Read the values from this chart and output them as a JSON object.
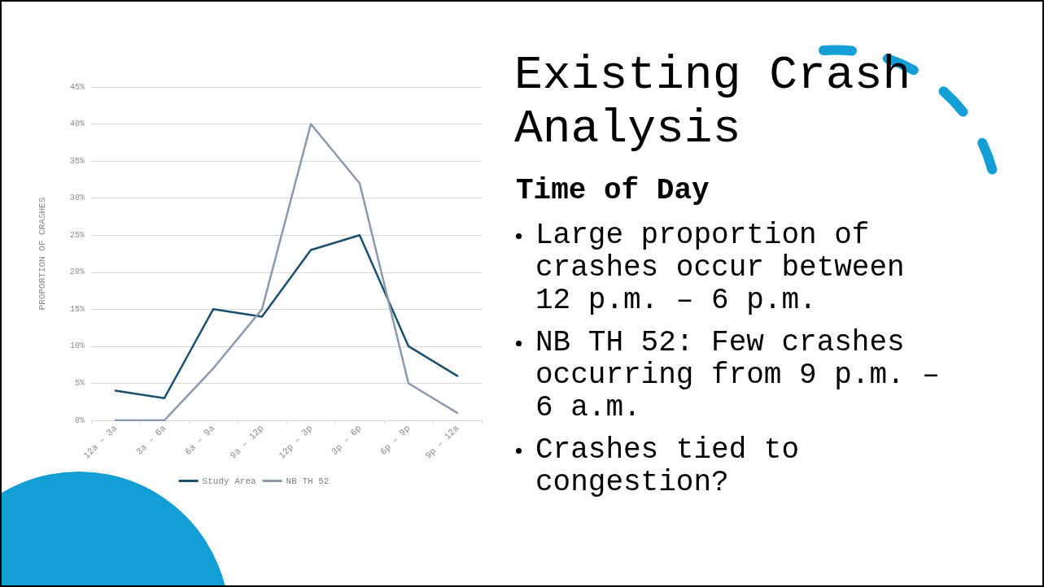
{
  "chart_data": {
    "type": "line",
    "title": "Existing Crash Analysis",
    "subtitle": "Time of Day",
    "ylabel": "PROPORTION OF CRASHES",
    "categories": [
      "12a – 3a",
      "3a – 6a",
      "6a – 9a",
      "9a – 12p",
      "12p – 3p",
      "3p – 6p",
      "6p – 9p",
      "9p – 12a"
    ],
    "series": [
      {
        "name": "Study Area",
        "color": "#1b4f6e",
        "values": [
          4,
          3,
          15,
          14,
          23,
          25,
          10,
          6
        ]
      },
      {
        "name": "NB TH 52",
        "color": "#8a9aac",
        "values": [
          0,
          0,
          7,
          15,
          40,
          32,
          5,
          1
        ]
      }
    ],
    "ylim": [
      0,
      45
    ],
    "yticks": [
      {
        "value": 0,
        "label": "0%"
      },
      {
        "value": 5,
        "label": "5%"
      },
      {
        "value": 10,
        "label": "10%"
      },
      {
        "value": 15,
        "label": "15%"
      },
      {
        "value": 20,
        "label": "20%"
      },
      {
        "value": 25,
        "label": "25%"
      },
      {
        "value": 30,
        "label": "30%"
      },
      {
        "value": 35,
        "label": "35%"
      },
      {
        "value": 40,
        "label": "40%"
      },
      {
        "value": 45,
        "label": "45%"
      }
    ],
    "grid": "y",
    "legend": "bottom",
    "marker": "none",
    "line_style": "solid",
    "annotations": [
      "Large proportion of crashes occur between 12 p.m. – 6 p.m.",
      "NB TH 52: Few crashes occurring from 9 p.m. – 6 a.m.",
      "Crashes tied to congestion?"
    ]
  }
}
